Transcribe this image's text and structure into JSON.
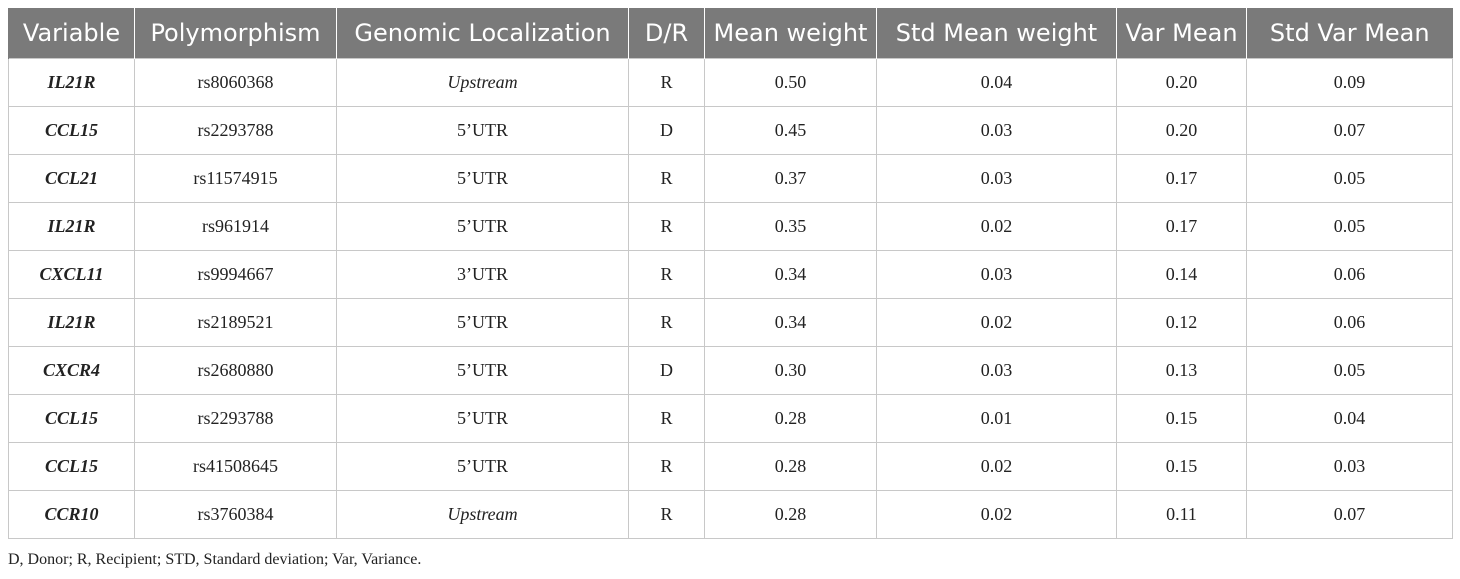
{
  "table": {
    "headers": [
      "Variable",
      "Polymorphism",
      "Genomic Localization",
      "D/R",
      "Mean weight",
      "Std Mean weight",
      "Var Mean",
      "Std Var Mean"
    ],
    "rows": [
      [
        "IL21R",
        "rs8060368",
        "Upstream",
        "R",
        "0.50",
        "0.04",
        "0.20",
        "0.09"
      ],
      [
        "CCL15",
        "rs2293788",
        "5’UTR",
        "D",
        "0.45",
        "0.03",
        "0.20",
        "0.07"
      ],
      [
        "CCL21",
        "rs11574915",
        "5’UTR",
        "R",
        "0.37",
        "0.03",
        "0.17",
        "0.05"
      ],
      [
        "IL21R",
        "rs961914",
        "5’UTR",
        "R",
        "0.35",
        "0.02",
        "0.17",
        "0.05"
      ],
      [
        "CXCL11",
        "rs9994667",
        "3’UTR",
        "R",
        "0.34",
        "0.03",
        "0.14",
        "0.06"
      ],
      [
        "IL21R",
        "rs2189521",
        "5’UTR",
        "R",
        "0.34",
        "0.02",
        "0.12",
        "0.06"
      ],
      [
        "CXCR4",
        "rs2680880",
        "5’UTR",
        "D",
        "0.30",
        "0.03",
        "0.13",
        "0.05"
      ],
      [
        "CCL15",
        "rs2293788",
        "5’UTR",
        "R",
        "0.28",
        "0.01",
        "0.15",
        "0.04"
      ],
      [
        "CCL15",
        "rs41508645",
        "5’UTR",
        "R",
        "0.28",
        "0.02",
        "0.15",
        "0.03"
      ],
      [
        "CCR10",
        "rs3760384",
        "Upstream",
        "R",
        "0.28",
        "0.02",
        "0.11",
        "0.07"
      ]
    ]
  },
  "footnote": "D, Donor; R, Recipient; STD, Standard deviation; Var, Variance.",
  "colors": {
    "header_bg": "#7a7a7a",
    "header_text": "#ffffff",
    "grid": "#c8c8c8",
    "body_text": "#222222"
  }
}
